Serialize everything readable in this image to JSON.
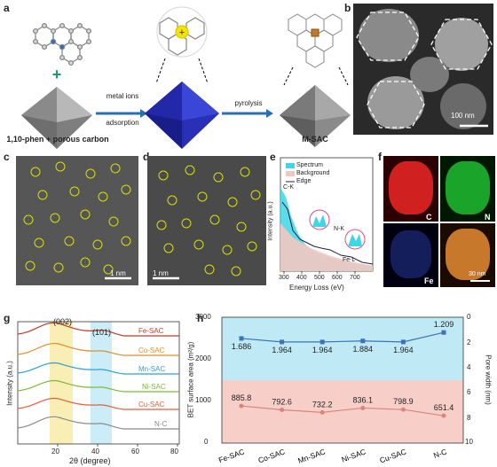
{
  "panels": {
    "a": {
      "label": "a",
      "caption_left": "1,10-phen + porous carbon",
      "arrow1_line1": "metal ions",
      "arrow1_line2": "adsorption",
      "arrow2": "pyrolysis",
      "caption_right": "M-SAC"
    },
    "b": {
      "label": "b",
      "scalebar": "100 nm"
    },
    "c": {
      "label": "c",
      "scalebar": "1 nm"
    },
    "d": {
      "label": "d",
      "scalebar": "1 nm"
    },
    "e": {
      "label": "e",
      "legend": [
        "Spectrum",
        "Background",
        "Edge"
      ],
      "peaks": [
        "C-K",
        "N-K",
        "Fe-L"
      ],
      "xlabel": "Energy Loss (eV)",
      "ylabel": "Intensity (a.u.)",
      "xticks": [
        "300",
        "400",
        "500",
        "600",
        "700"
      ]
    },
    "f": {
      "label": "f",
      "maps": [
        {
          "element": "C",
          "color": "#d02020"
        },
        {
          "element": "N",
          "color": "#1aa52a"
        },
        {
          "element": "Fe",
          "color": "#1a2aa0"
        },
        {
          "element": "",
          "color": "#c8782a"
        }
      ],
      "scalebar": "30 nm"
    },
    "g": {
      "label": "g",
      "peak1": "(002)",
      "peak2": "(101)",
      "xlabel": "2θ (degree)",
      "ylabel": "Intensity (a.u.)",
      "xticks": [
        "20",
        "40",
        "60",
        "80"
      ],
      "series": [
        {
          "name": "Fe-SAC",
          "color": "#c0392b"
        },
        {
          "name": "Co-SAC",
          "color": "#e08e2b"
        },
        {
          "name": "Mn-SAC",
          "color": "#2e9fd6"
        },
        {
          "name": "Ni-SAC",
          "color": "#7cba3a"
        },
        {
          "name": "Cu-SAC",
          "color": "#e0603a"
        },
        {
          "name": "N-C",
          "color": "#8a8a8a"
        }
      ]
    },
    "h": {
      "label": "h",
      "ylabel_left": "BET surface area (m²/g)",
      "ylabel_right": "Pore width (nm)",
      "yticks_left": [
        "0",
        "1000",
        "2000",
        "3000"
      ],
      "yticks_right": [
        "0",
        "2",
        "4",
        "6",
        "8",
        "10"
      ]
    }
  },
  "chart_data": [
    {
      "type": "line",
      "panel": "h",
      "categories": [
        "Fe-SAC",
        "Co-SAC",
        "Mn-SAC",
        "Ni-SAC",
        "Cu-SAC",
        "N-C"
      ],
      "series": [
        {
          "name": "",
          "axis": "left",
          "values": [
            885.8,
            792.6,
            732.2,
            836.1,
            798.9,
            651.4
          ],
          "labels": [
            "885.8",
            "792.6",
            "732.2",
            "836.1",
            "798.9",
            "651.4"
          ],
          "color": "#d9857a"
        },
        {
          "name": "",
          "axis": "right",
          "values": [
            1.686,
            1.964,
            1.964,
            1.884,
            1.964,
            1.209
          ],
          "labels": [
            "1.686",
            "1.964",
            "1.964",
            "1.884",
            "1.964",
            "1.209"
          ],
          "color": "#3a73b8"
        }
      ],
      "ylim_left": [
        0,
        3000
      ],
      "ylim_right": [
        10,
        0
      ],
      "xlabel": "",
      "ylabel": "BET surface area (m²/g)",
      "ylabel2": "Pore width (nm)"
    }
  ]
}
